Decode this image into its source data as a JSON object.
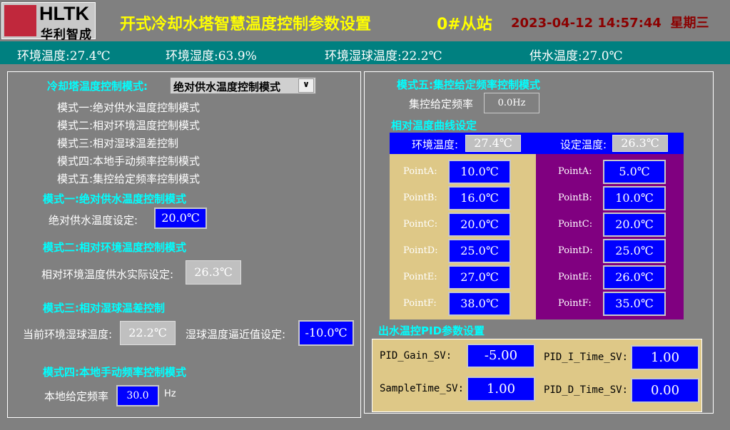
{
  "header": {
    "logo_text": "HLTK",
    "logo_sub": "华利智成",
    "title": "开式冷却水塔智慧温度控制参数设置",
    "station": "0#从站",
    "datetime": "2023-04-12 14:57:44",
    "weekday": "星期三"
  },
  "status": [
    {
      "label": "环境温度:",
      "value": "27.4℃"
    },
    {
      "label": "环境湿度:",
      "value": "63.9%"
    },
    {
      "label": "环境湿球温度:",
      "value": "22.2℃"
    },
    {
      "label": "供水温度:",
      "value": "27.0℃"
    }
  ],
  "left": {
    "mode_label": "冷却塔温度控制模式:",
    "mode_selected": "绝对供水温度控制模式",
    "modes": [
      "模式一:绝对供水温度控制模式",
      "模式二:相对环境温度控制模式",
      "模式三:相对湿球温差控制",
      "模式四:本地手动频率控制模式",
      "模式五:集控给定频率控制模式"
    ],
    "m1": {
      "title": "模式一:绝对供水温度控制模式",
      "label": "绝对供水温度设定:",
      "value": "20.0℃"
    },
    "m2": {
      "title": "模式二:相对环境温度控制模式",
      "label": "相对环境温度供水实际设定:",
      "value": "26.3℃"
    },
    "m3": {
      "title": "模式三:相对湿球温差控制",
      "label": "当前环境湿球温度:",
      "value": "22.2℃",
      "label2": "湿球温度逼近值设定:",
      "value2": "-10.0℃"
    },
    "m4": {
      "title": "模式四:本地手动频率控制模式",
      "label": "本地给定频率",
      "value": "30.0",
      "unit": "Hz"
    }
  },
  "right": {
    "m5": {
      "title": "模式五:集控给定频率控制模式",
      "label": "集控给定频率",
      "value": "0.0Hz"
    },
    "curve": {
      "title": "相对温度曲线设定",
      "env_label": "环境温度:",
      "env_value": "27.4℃",
      "set_label": "设定温度:",
      "set_value": "26.3℃",
      "left_points": [
        {
          "label": "PointA:",
          "value": "10.0℃"
        },
        {
          "label": "PointB:",
          "value": "16.0℃"
        },
        {
          "label": "PointC:",
          "value": "20.0℃"
        },
        {
          "label": "PointD:",
          "value": "25.0℃"
        },
        {
          "label": "PointE:",
          "value": "27.0℃"
        },
        {
          "label": "PointF:",
          "value": "38.0℃"
        }
      ],
      "right_points": [
        {
          "label": "PointA:",
          "value": "5.0℃"
        },
        {
          "label": "PointB:",
          "value": "10.0℃"
        },
        {
          "label": "PointC:",
          "value": "20.0℃"
        },
        {
          "label": "PointD:",
          "value": "25.0℃"
        },
        {
          "label": "PointE:",
          "value": "26.0℃"
        },
        {
          "label": "PointF:",
          "value": "35.0℃"
        }
      ]
    },
    "pid": {
      "title": "出水温控PID参数设置",
      "gain_label": "PID_Gain_SV:",
      "gain": "-5.00",
      "itime_label": "PID_I_Time_SV:",
      "itime": "1.00",
      "sample_label": "SampleTime_SV:",
      "sample": "1.00",
      "dtime_label": "PID_D_Time_SV:",
      "dtime": "0.00"
    }
  },
  "colors": {
    "background": "#808080",
    "status_bar": "#008080",
    "title": "#ffff00",
    "datetime": "#8b0000",
    "section": "#00ffff",
    "input": "#0000ff",
    "tan": "#dec887",
    "purple": "#800080"
  }
}
